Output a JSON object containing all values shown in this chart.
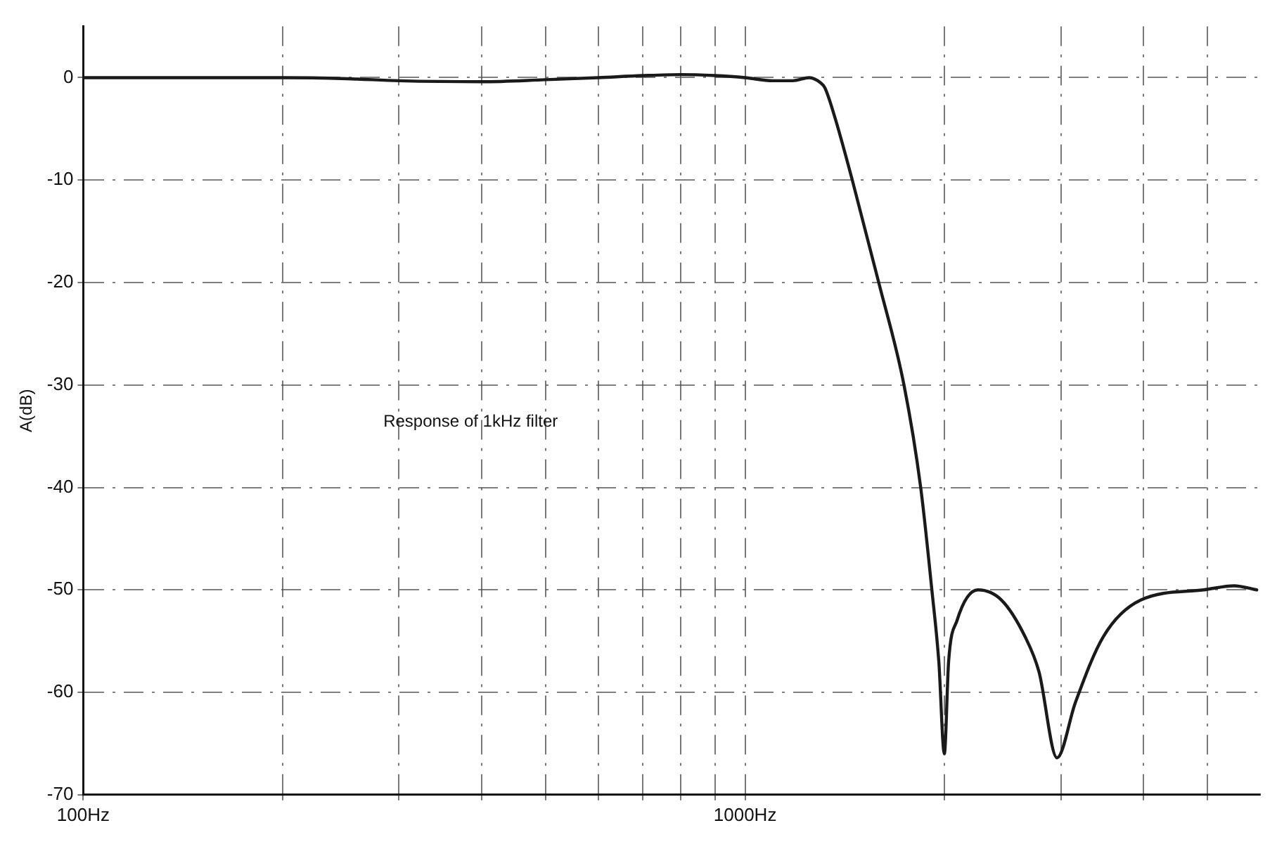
{
  "chart_data": {
    "type": "line",
    "ylabel": "A(dB)",
    "annotations": [
      "Response of 1kHz filter"
    ],
    "x": [
      100,
      150,
      200,
      250,
      300,
      400,
      500,
      600,
      700,
      800,
      900,
      1000,
      1100,
      1180,
      1250,
      1300,
      1320,
      1364,
      1452,
      1592,
      1738,
      1842,
      1915,
      1962,
      2000,
      2030,
      2090,
      2247,
      2440,
      2650,
      2780,
      2960,
      3155,
      3475,
      3960,
      4930,
      5480,
      5930
    ],
    "series": [
      {
        "color": "#1a1a1a",
        "values": [
          0,
          0,
          0,
          -0.1,
          -0.3,
          -0.4,
          -0.2,
          0,
          0.2,
          0.3,
          0.2,
          0,
          -0.3,
          -0.3,
          0,
          -0.5,
          -1,
          -3.7,
          -10,
          -20,
          -30,
          -40,
          -50,
          -57,
          -66,
          -57,
          -53,
          -50,
          -51,
          -54.6,
          -58,
          -66.4,
          -61,
          -54.6,
          -51,
          -50,
          -49.6,
          -50
        ]
      }
    ],
    "log": "x",
    "xlim": [
      100,
      6000
    ],
    "ylim": [
      -70,
      5
    ],
    "xticks": [
      {
        "value": 100,
        "label": "100Hz"
      },
      {
        "value": 200,
        "label": null
      },
      {
        "value": 300,
        "label": null
      },
      {
        "value": 400,
        "label": null
      },
      {
        "value": 500,
        "label": null
      },
      {
        "value": 600,
        "label": null
      },
      {
        "value": 700,
        "label": null
      },
      {
        "value": 800,
        "label": null
      },
      {
        "value": 900,
        "label": null
      },
      {
        "value": 1000,
        "label": "1000Hz"
      },
      {
        "value": 2000,
        "label": null
      },
      {
        "value": 3000,
        "label": null
      },
      {
        "value": 4000,
        "label": null
      },
      {
        "value": 5000,
        "label": null
      }
    ],
    "yticks": [
      0,
      -10,
      -20,
      -30,
      -40,
      -50,
      -60,
      -70
    ],
    "grid": true,
    "legend": false,
    "marker": "none",
    "line_style": "solid"
  }
}
